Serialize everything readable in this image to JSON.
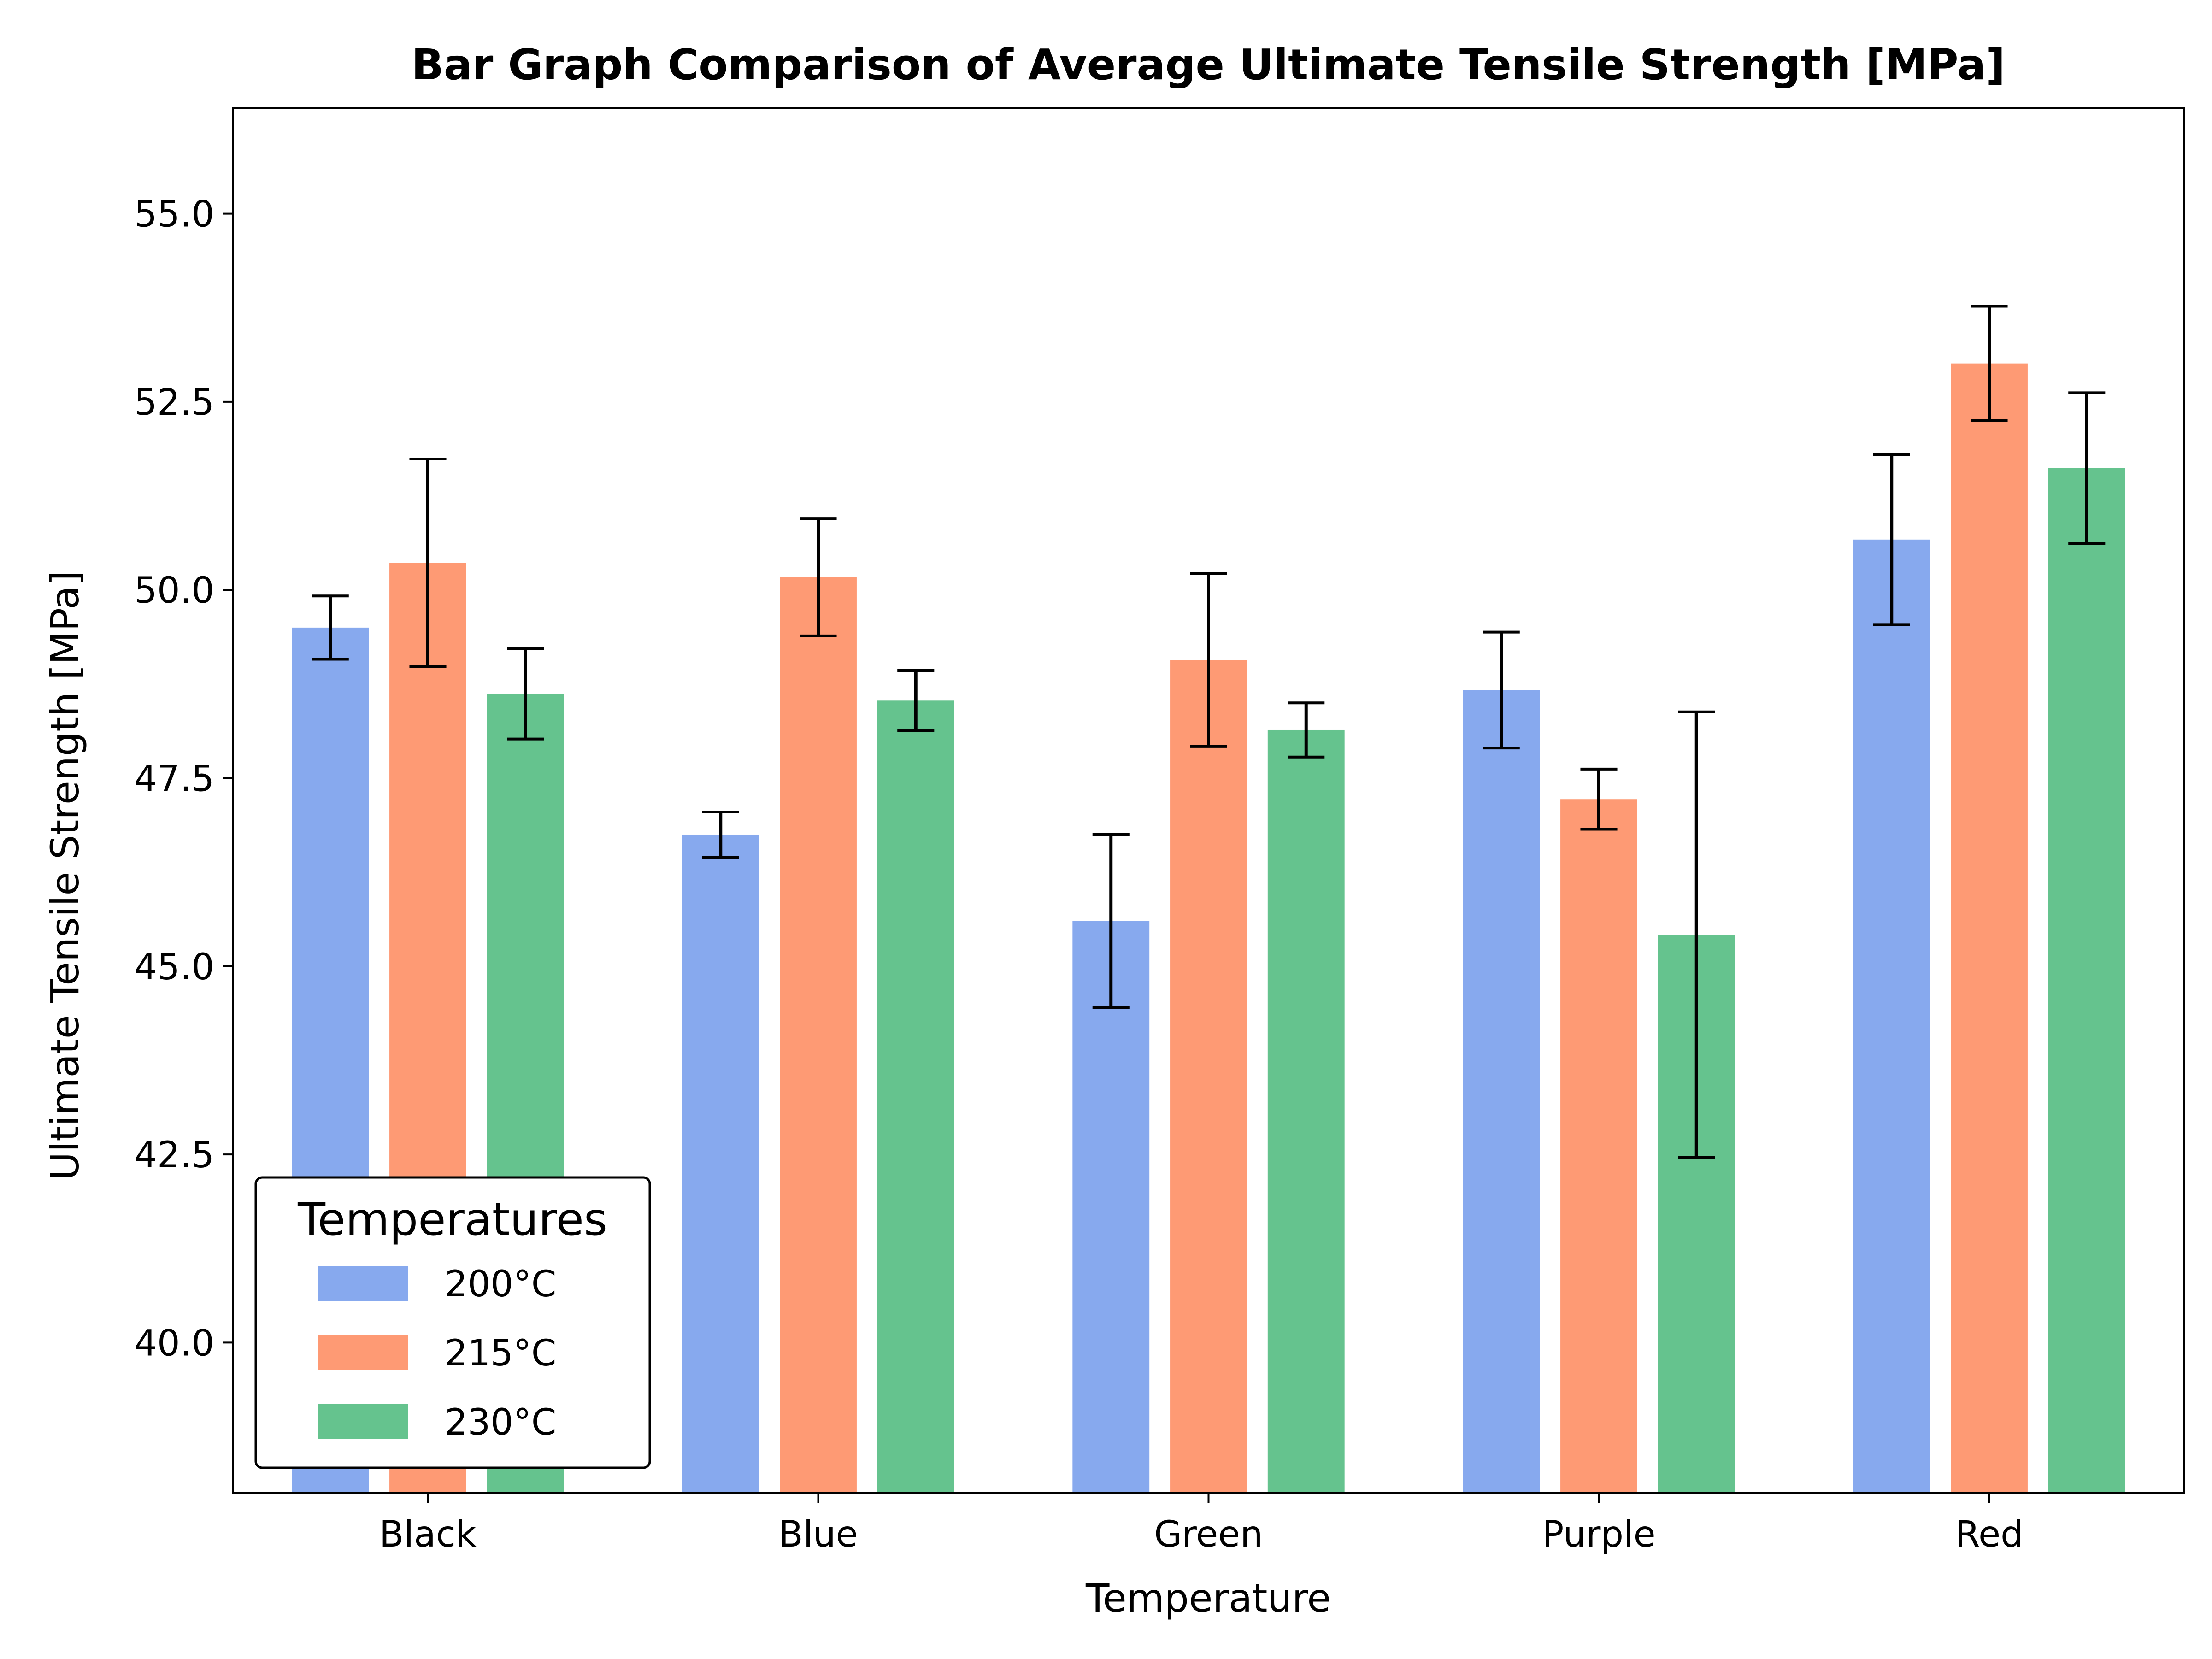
{
  "chart_data": {
    "type": "bar",
    "title": "Bar Graph Comparison of Average Ultimate Tensile Strength [MPa]",
    "xlabel": "Temperature",
    "ylabel": "Ultimate Tensile Strength [MPa]",
    "categories": [
      "Black",
      "Blue",
      "Green",
      "Purple",
      "Red"
    ],
    "ylim": [
      38.0,
      56.4
    ],
    "yticks": [
      40.0,
      42.5,
      45.0,
      47.5,
      50.0,
      52.5,
      55.0
    ],
    "ytick_labels": [
      "40.0",
      "42.5",
      "45.0",
      "47.5",
      "50.0",
      "52.5",
      "55.0"
    ],
    "grid": false,
    "error_bars": true,
    "legend": {
      "title": "Temperatures",
      "position": "lower-left"
    },
    "series": [
      {
        "name": "200°C",
        "color": "#87a9ee",
        "values": [
          49.5,
          46.75,
          45.6,
          48.67,
          50.67
        ],
        "errors": [
          0.42,
          0.3,
          1.15,
          0.77,
          1.13
        ]
      },
      {
        "name": "215°C",
        "color": "#fe9a74",
        "values": [
          50.36,
          50.17,
          49.07,
          47.22,
          53.01
        ],
        "errors": [
          1.38,
          0.78,
          1.15,
          0.4,
          0.76
        ]
      },
      {
        "name": "230°C",
        "color": "#65c38e",
        "values": [
          48.62,
          48.53,
          48.14,
          45.42,
          51.62
        ],
        "errors": [
          0.6,
          0.4,
          0.36,
          2.96,
          1.0
        ]
      }
    ]
  }
}
